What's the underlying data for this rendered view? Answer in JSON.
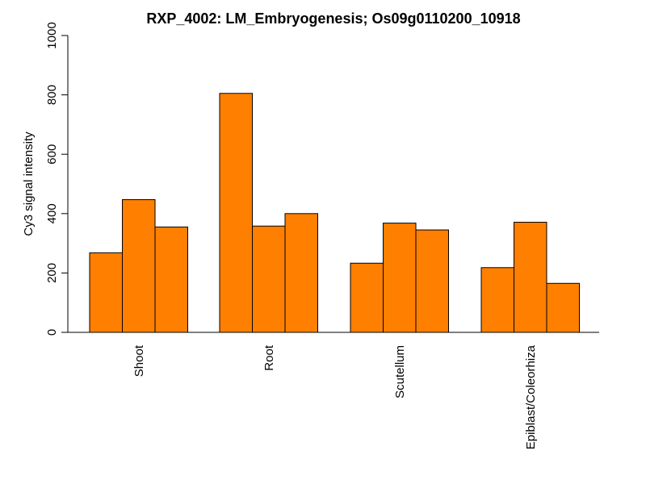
{
  "chart_data": {
    "type": "bar",
    "title": "RXP_4002: LM_Embryogenesis; Os09g0110200_10918",
    "xlabel": "",
    "ylabel": "Cy3 signal intensity",
    "ylim": [
      0,
      1000
    ],
    "yticks": [
      "0",
      "200",
      "400",
      "600",
      "800",
      "1000"
    ],
    "categories": [
      "Shoot",
      "Root",
      "Scutellum",
      "Epiblast/Coleorhiza"
    ],
    "bars_per_category": 3,
    "values": [
      [
        268,
        447,
        355
      ],
      [
        805,
        358,
        400
      ],
      [
        233,
        368,
        345
      ],
      [
        218,
        371,
        165
      ]
    ],
    "bar_color": "#ff7f00",
    "grid": false,
    "legend": "none"
  }
}
